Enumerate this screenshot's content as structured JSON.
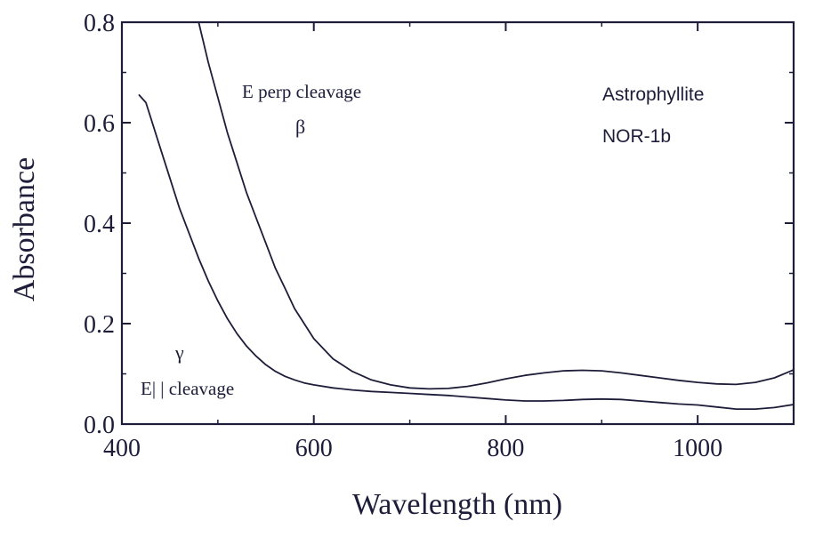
{
  "chart_data": {
    "type": "line",
    "title": "",
    "xlabel": "Wavelength (nm)",
    "ylabel": "Absorbance",
    "xlim": [
      400,
      1100
    ],
    "ylim": [
      0.0,
      0.8
    ],
    "x_ticks": [
      400,
      600,
      800,
      1000
    ],
    "x_tick_labels": [
      "400",
      "600",
      "800",
      "1000"
    ],
    "y_ticks": [
      0.0,
      0.2,
      0.4,
      0.6,
      0.8
    ],
    "y_tick_labels": [
      "0.0",
      "0.2",
      "0.4",
      "0.6",
      "0.8"
    ],
    "grid": false,
    "legend": "none",
    "line_color": "#1d1d3a",
    "annotations": {
      "sample_name": "Astrophyllite",
      "sample_id": "NOR-1b",
      "beta_label": "E perp cleavage",
      "beta_symbol": "β",
      "gamma_symbol": "γ",
      "gamma_label": "E| | cleavage"
    },
    "series": [
      {
        "x": [
          480,
          490,
          500,
          510,
          520,
          530,
          540,
          550,
          560,
          570,
          580,
          590,
          600,
          620,
          640,
          660,
          680,
          700,
          720,
          740,
          760,
          780,
          800,
          820,
          840,
          860,
          880,
          900,
          920,
          940,
          960,
          980,
          1000,
          1020,
          1040,
          1060,
          1080,
          1100
        ],
        "y": [
          0.8,
          0.72,
          0.65,
          0.58,
          0.52,
          0.46,
          0.41,
          0.36,
          0.31,
          0.27,
          0.23,
          0.2,
          0.17,
          0.13,
          0.105,
          0.088,
          0.078,
          0.072,
          0.07,
          0.071,
          0.075,
          0.082,
          0.09,
          0.097,
          0.102,
          0.106,
          0.107,
          0.106,
          0.102,
          0.097,
          0.092,
          0.087,
          0.083,
          0.08,
          0.079,
          0.083,
          0.092,
          0.108
        ]
      },
      {
        "x": [
          418,
          425,
          430,
          440,
          450,
          460,
          470,
          480,
          490,
          500,
          510,
          520,
          530,
          540,
          550,
          560,
          570,
          580,
          590,
          600,
          620,
          640,
          660,
          680,
          700,
          720,
          740,
          760,
          780,
          800,
          820,
          840,
          860,
          880,
          900,
          920,
          940,
          960,
          980,
          1000,
          1020,
          1040,
          1060,
          1080,
          1100
        ],
        "y": [
          0.655,
          0.64,
          0.61,
          0.55,
          0.49,
          0.43,
          0.38,
          0.33,
          0.285,
          0.245,
          0.21,
          0.18,
          0.155,
          0.135,
          0.118,
          0.105,
          0.095,
          0.088,
          0.082,
          0.078,
          0.072,
          0.068,
          0.065,
          0.063,
          0.061,
          0.059,
          0.057,
          0.054,
          0.051,
          0.048,
          0.046,
          0.046,
          0.047,
          0.049,
          0.05,
          0.049,
          0.046,
          0.043,
          0.04,
          0.038,
          0.034,
          0.03,
          0.03,
          0.033,
          0.039
        ]
      }
    ]
  }
}
